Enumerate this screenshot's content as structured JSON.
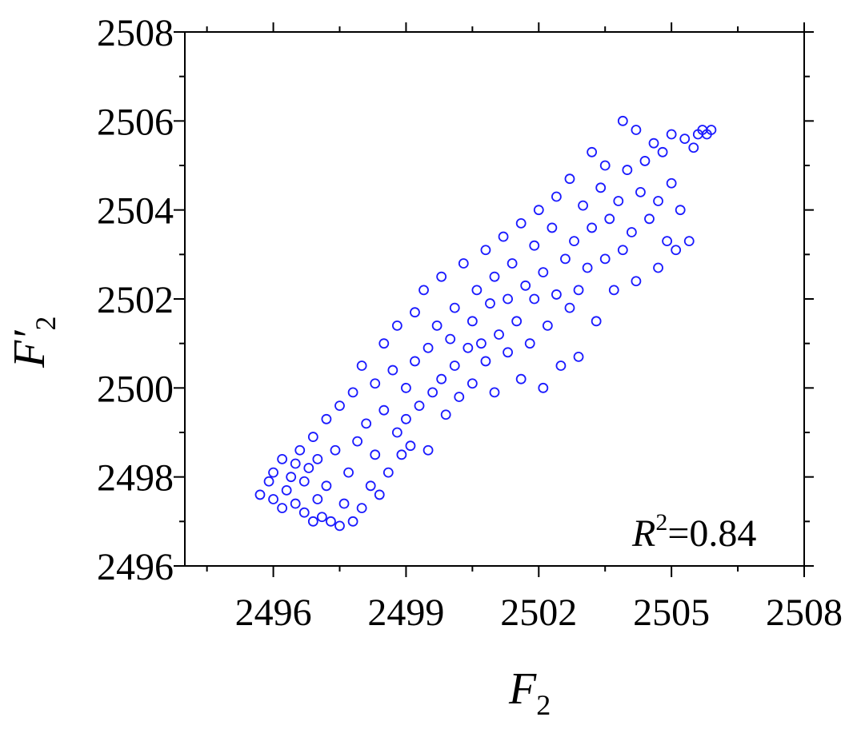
{
  "chart_data": {
    "type": "scatter",
    "xlabel": {
      "main": "F",
      "sub": "2"
    },
    "ylabel": {
      "main": "F′",
      "sub": "2"
    },
    "xlim": [
      2494,
      2508
    ],
    "ylim": [
      2496,
      2508
    ],
    "xticks": [
      "2496",
      "2499",
      "2502",
      "2505",
      "2508"
    ],
    "yticks": [
      "2496",
      "2498",
      "2500",
      "2502",
      "2504",
      "2506",
      "2508"
    ],
    "annotation": {
      "main": "R",
      "sup": "2",
      "rest": "=0.84"
    },
    "grid": false,
    "marker": "hollow-circle",
    "series": [
      {
        "color": "#1a1aff",
        "points": [
          [
            2495.7,
            2497.6
          ],
          [
            2495.9,
            2497.9
          ],
          [
            2496.0,
            2498.1
          ],
          [
            2496.0,
            2497.5
          ],
          [
            2496.2,
            2497.3
          ],
          [
            2496.2,
            2498.4
          ],
          [
            2496.3,
            2497.7
          ],
          [
            2496.4,
            2498.0
          ],
          [
            2496.5,
            2498.3
          ],
          [
            2496.5,
            2497.4
          ],
          [
            2496.6,
            2498.6
          ],
          [
            2496.7,
            2497.2
          ],
          [
            2496.7,
            2497.9
          ],
          [
            2496.8,
            2498.2
          ],
          [
            2496.9,
            2497.0
          ],
          [
            2496.9,
            2498.9
          ],
          [
            2497.0,
            2497.5
          ],
          [
            2497.0,
            2498.4
          ],
          [
            2497.1,
            2497.1
          ],
          [
            2497.2,
            2499.3
          ],
          [
            2497.2,
            2497.8
          ],
          [
            2497.3,
            2497.0
          ],
          [
            2497.4,
            2498.6
          ],
          [
            2497.5,
            2496.9
          ],
          [
            2497.5,
            2499.6
          ],
          [
            2497.6,
            2497.4
          ],
          [
            2497.7,
            2498.1
          ],
          [
            2497.8,
            2497.0
          ],
          [
            2497.8,
            2499.9
          ],
          [
            2497.9,
            2498.8
          ],
          [
            2498.0,
            2497.3
          ],
          [
            2498.0,
            2500.5
          ],
          [
            2498.1,
            2499.2
          ],
          [
            2498.2,
            2497.8
          ],
          [
            2498.3,
            2500.1
          ],
          [
            2498.3,
            2498.5
          ],
          [
            2498.4,
            2497.6
          ],
          [
            2498.5,
            2501.0
          ],
          [
            2498.5,
            2499.5
          ],
          [
            2498.6,
            2498.1
          ],
          [
            2498.7,
            2500.4
          ],
          [
            2498.8,
            2499.0
          ],
          [
            2498.8,
            2501.4
          ],
          [
            2498.9,
            2498.5
          ],
          [
            2499.0,
            2500.0
          ],
          [
            2499.0,
            2499.3
          ],
          [
            2499.1,
            2498.7
          ],
          [
            2499.2,
            2501.7
          ],
          [
            2499.2,
            2500.6
          ],
          [
            2499.3,
            2499.6
          ],
          [
            2499.4,
            2502.2
          ],
          [
            2499.5,
            2498.6
          ],
          [
            2499.5,
            2500.9
          ],
          [
            2499.6,
            2499.9
          ],
          [
            2499.7,
            2501.4
          ],
          [
            2499.8,
            2500.2
          ],
          [
            2499.8,
            2502.5
          ],
          [
            2499.9,
            2499.4
          ],
          [
            2500.0,
            2501.1
          ],
          [
            2500.1,
            2500.5
          ],
          [
            2500.1,
            2501.8
          ],
          [
            2500.2,
            2499.8
          ],
          [
            2500.3,
            2502.8
          ],
          [
            2500.4,
            2500.9
          ],
          [
            2500.5,
            2501.5
          ],
          [
            2500.5,
            2500.1
          ],
          [
            2500.6,
            2502.2
          ],
          [
            2500.7,
            2501.0
          ],
          [
            2500.8,
            2503.1
          ],
          [
            2500.8,
            2500.6
          ],
          [
            2500.9,
            2501.9
          ],
          [
            2501.0,
            2502.5
          ],
          [
            2501.0,
            2499.9
          ],
          [
            2501.1,
            2501.2
          ],
          [
            2501.2,
            2503.4
          ],
          [
            2501.3,
            2502.0
          ],
          [
            2501.3,
            2500.8
          ],
          [
            2501.4,
            2502.8
          ],
          [
            2501.5,
            2501.5
          ],
          [
            2501.6,
            2503.7
          ],
          [
            2501.6,
            2500.2
          ],
          [
            2501.7,
            2502.3
          ],
          [
            2501.8,
            2501.0
          ],
          [
            2501.9,
            2503.2
          ],
          [
            2501.9,
            2502.0
          ],
          [
            2502.0,
            2504.0
          ],
          [
            2502.1,
            2500.0
          ],
          [
            2502.1,
            2502.6
          ],
          [
            2502.2,
            2501.4
          ],
          [
            2502.3,
            2503.6
          ],
          [
            2502.4,
            2502.1
          ],
          [
            2502.4,
            2504.3
          ],
          [
            2502.5,
            2500.5
          ],
          [
            2502.6,
            2502.9
          ],
          [
            2502.7,
            2501.8
          ],
          [
            2502.7,
            2504.7
          ],
          [
            2502.8,
            2503.3
          ],
          [
            2502.9,
            2502.2
          ],
          [
            2502.9,
            2500.7
          ],
          [
            2503.0,
            2504.1
          ],
          [
            2503.1,
            2502.7
          ],
          [
            2503.2,
            2505.3
          ],
          [
            2503.2,
            2503.6
          ],
          [
            2503.3,
            2501.5
          ],
          [
            2503.4,
            2504.5
          ],
          [
            2503.5,
            2502.9
          ],
          [
            2503.5,
            2505.0
          ],
          [
            2503.6,
            2503.8
          ],
          [
            2503.7,
            2502.2
          ],
          [
            2503.8,
            2504.2
          ],
          [
            2503.9,
            2506.0
          ],
          [
            2503.9,
            2503.1
          ],
          [
            2504.0,
            2504.9
          ],
          [
            2504.1,
            2503.5
          ],
          [
            2504.2,
            2505.8
          ],
          [
            2504.2,
            2502.4
          ],
          [
            2504.3,
            2504.4
          ],
          [
            2504.4,
            2505.1
          ],
          [
            2504.5,
            2503.8
          ],
          [
            2504.6,
            2505.5
          ],
          [
            2504.7,
            2504.2
          ],
          [
            2504.7,
            2502.7
          ],
          [
            2504.8,
            2505.3
          ],
          [
            2504.9,
            2503.3
          ],
          [
            2505.0,
            2504.6
          ],
          [
            2505.0,
            2505.7
          ],
          [
            2505.1,
            2503.1
          ],
          [
            2505.2,
            2504.0
          ],
          [
            2505.3,
            2505.6
          ],
          [
            2505.4,
            2503.3
          ],
          [
            2505.5,
            2505.4
          ],
          [
            2505.6,
            2505.7
          ],
          [
            2505.7,
            2505.8
          ],
          [
            2505.8,
            2505.7
          ],
          [
            2505.9,
            2505.8
          ]
        ]
      }
    ]
  }
}
